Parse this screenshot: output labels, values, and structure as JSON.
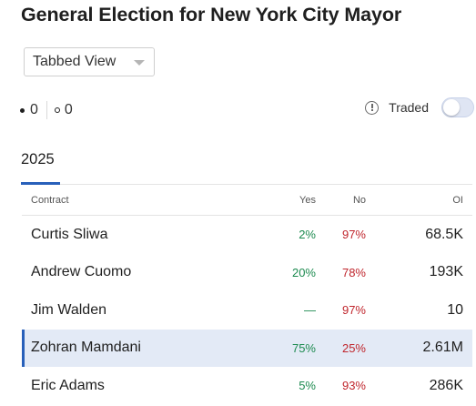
{
  "title": "General Election for New York City Mayor",
  "view_select": {
    "value": "Tabbed View"
  },
  "legend": {
    "filled_count": "0",
    "open_count": "0"
  },
  "traded": {
    "label": "Traded",
    "enabled": false
  },
  "tabs": [
    {
      "label": "2025",
      "active": true
    }
  ],
  "table": {
    "columns": {
      "contract": "Contract",
      "yes": "Yes",
      "no": "No",
      "oi": "OI"
    },
    "rows": [
      {
        "contract": "Curtis Sliwa",
        "yes": "2%",
        "no": "97%",
        "oi": "68.5K",
        "selected": false
      },
      {
        "contract": "Andrew Cuomo",
        "yes": "20%",
        "no": "78%",
        "oi": "193K",
        "selected": false
      },
      {
        "contract": "Jim Walden",
        "yes": "—",
        "no": "97%",
        "oi": "10",
        "selected": false
      },
      {
        "contract": "Zohran Mamdani",
        "yes": "75%",
        "no": "25%",
        "oi": "2.61M",
        "selected": true
      },
      {
        "contract": "Eric Adams",
        "yes": "5%",
        "no": "93%",
        "oi": "286K",
        "selected": false
      }
    ]
  },
  "colors": {
    "accent": "#2860ba",
    "yes": "#1c8a4f",
    "no": "#c0262d",
    "selected_row": "#e3eaf6"
  }
}
